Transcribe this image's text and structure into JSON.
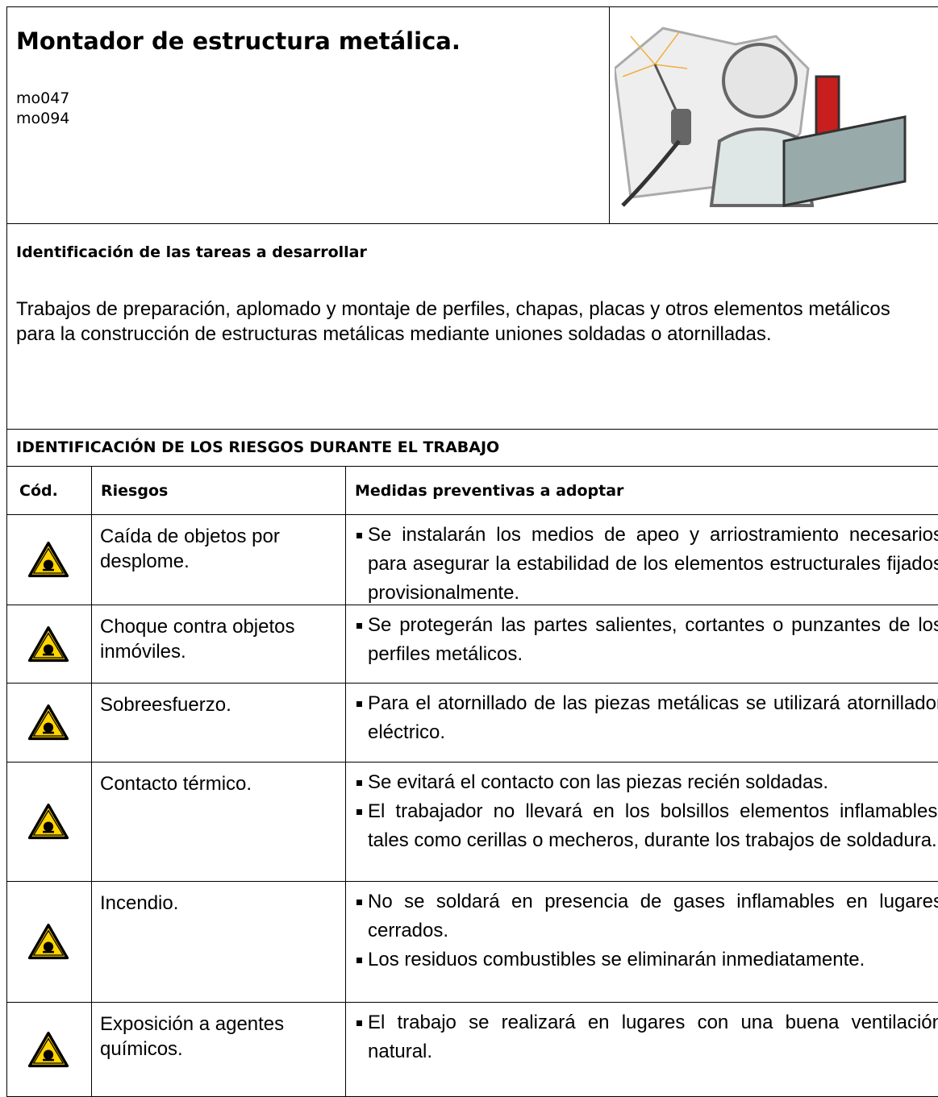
{
  "header": {
    "title": "Montador de estructura metálica.",
    "codes": [
      "mo047",
      "mo094"
    ]
  },
  "tasks": {
    "heading": "Identificación de las tareas a desarrollar",
    "text": "Trabajos de preparación, aplomado y montaje de perfiles, chapas, placas y otros elementos metálicos para la construcción de estructuras metálicas mediante uniones soldadas o atornilladas."
  },
  "risks": {
    "heading": "IDENTIFICACIÓN DE LOS RIESGOS DURANTE EL TRABAJO",
    "columns": [
      "Cód.",
      "Riesgos",
      "Medidas preventivas a adoptar"
    ],
    "rows": [
      {
        "risk": "Caída de objetos por desplome.",
        "measures": [
          "Se instalarán los medios de apeo y arriostramiento necesarios para asegurar la estabilidad de los elementos estructurales fijados provisionalmente."
        ]
      },
      {
        "risk": "Choque contra objetos inmóviles.",
        "measures": [
          "Se protegerán las partes salientes, cortantes o punzantes de los perfiles metálicos."
        ]
      },
      {
        "risk": "Sobreesfuerzo.",
        "measures": [
          "Para el atornillado de las piezas metálicas se utilizará atornillador eléctrico."
        ]
      },
      {
        "risk": "Contacto térmico.",
        "measures": [
          "Se evitará el contacto con las piezas recién soldadas.",
          "El trabajador no llevará en los bolsillos elementos inflamables, tales como cerillas o mecheros, durante los trabajos de soldadura."
        ]
      },
      {
        "risk": "Incendio.",
        "measures": [
          "No se soldará en presencia de gases inflamables en lugares cerrados.",
          "Los residuos combustibles se eliminarán inmediatamente."
        ]
      },
      {
        "risk": "Exposición a agentes químicos.",
        "measures": [
          "El trabajo se realizará en lugares con una buena ventilación natural."
        ]
      }
    ]
  }
}
